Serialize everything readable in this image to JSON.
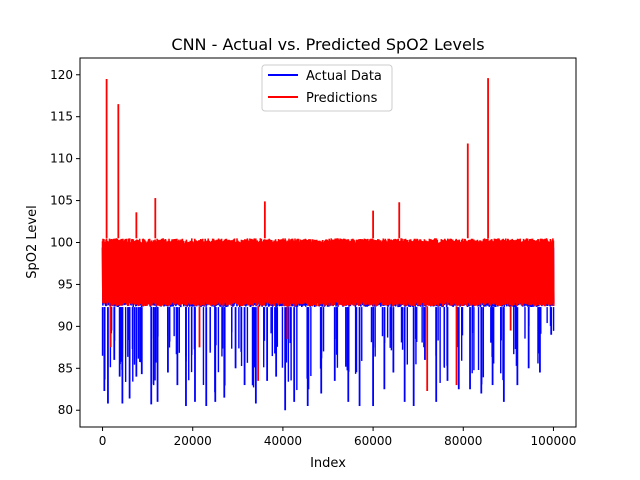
{
  "chart_data": {
    "type": "line",
    "title": "CNN - Actual vs. Predicted SpO2 Levels",
    "xlabel": "Index",
    "ylabel": "SpO2 Level",
    "xlim": [
      -5000,
      105000
    ],
    "ylim": [
      78,
      122
    ],
    "x_ticks": [
      0,
      20000,
      40000,
      60000,
      80000,
      100000
    ],
    "y_ticks": [
      80,
      85,
      90,
      95,
      100,
      105,
      110,
      115,
      120
    ],
    "grid": false,
    "legend": {
      "position": "top-center"
    },
    "series": [
      {
        "name": "Actual Data",
        "color": "#0000ff",
        "band": [
          92.3,
          99.8
        ],
        "dips": [
          {
            "x": 400,
            "y": 82.3
          },
          {
            "x": 1200,
            "y": 80.8
          },
          {
            "x": 2600,
            "y": 86.0
          },
          {
            "x": 3800,
            "y": 84.0
          },
          {
            "x": 4400,
            "y": 80.8
          },
          {
            "x": 6000,
            "y": 81.4
          },
          {
            "x": 7500,
            "y": 84.0
          },
          {
            "x": 8700,
            "y": 84.3
          },
          {
            "x": 10800,
            "y": 80.7
          },
          {
            "x": 12200,
            "y": 81.0
          },
          {
            "x": 14500,
            "y": 84.5
          },
          {
            "x": 16600,
            "y": 83.0
          },
          {
            "x": 18500,
            "y": 80.5
          },
          {
            "x": 20500,
            "y": 81.0
          },
          {
            "x": 23000,
            "y": 80.5
          },
          {
            "x": 25000,
            "y": 81.0
          },
          {
            "x": 27000,
            "y": 81.5
          },
          {
            "x": 29500,
            "y": 85.0
          },
          {
            "x": 31500,
            "y": 83.0
          },
          {
            "x": 34000,
            "y": 80.8
          },
          {
            "x": 36500,
            "y": 83.5
          },
          {
            "x": 38500,
            "y": 84.0
          },
          {
            "x": 40500,
            "y": 80.0
          },
          {
            "x": 42500,
            "y": 81.0
          },
          {
            "x": 45500,
            "y": 80.5
          },
          {
            "x": 48500,
            "y": 82.0
          },
          {
            "x": 51500,
            "y": 83.5
          },
          {
            "x": 54500,
            "y": 81.0
          },
          {
            "x": 57000,
            "y": 80.5
          },
          {
            "x": 60000,
            "y": 80.5
          },
          {
            "x": 62500,
            "y": 82.5
          },
          {
            "x": 64500,
            "y": 84.5
          },
          {
            "x": 67000,
            "y": 81.0
          },
          {
            "x": 69000,
            "y": 80.5
          },
          {
            "x": 71500,
            "y": 86.0
          },
          {
            "x": 74000,
            "y": 81.0
          },
          {
            "x": 76500,
            "y": 83.5
          },
          {
            "x": 79000,
            "y": 82.5
          },
          {
            "x": 81500,
            "y": 82.5
          },
          {
            "x": 84000,
            "y": 82.0
          },
          {
            "x": 86500,
            "y": 83.0
          },
          {
            "x": 89000,
            "y": 81.0
          },
          {
            "x": 92000,
            "y": 83.0
          },
          {
            "x": 94500,
            "y": 85.0
          },
          {
            "x": 97000,
            "y": 84.5
          },
          {
            "x": 99500,
            "y": 89.0
          }
        ]
      },
      {
        "name": "Predictions",
        "color": "#ff0000",
        "band": [
          92.4,
          100.5
        ],
        "spikes": [
          {
            "x": 900,
            "y": 119.5
          },
          {
            "x": 3500,
            "y": 116.5
          },
          {
            "x": 7500,
            "y": 103.6
          },
          {
            "x": 11700,
            "y": 105.3
          },
          {
            "x": 36000,
            "y": 104.9
          },
          {
            "x": 60000,
            "y": 103.8
          },
          {
            "x": 65800,
            "y": 104.8
          },
          {
            "x": 81000,
            "y": 111.8
          },
          {
            "x": 85500,
            "y": 119.6
          }
        ],
        "dips": [
          {
            "x": 1800,
            "y": 87.5
          },
          {
            "x": 21500,
            "y": 87.5
          },
          {
            "x": 34500,
            "y": 83.5
          },
          {
            "x": 41000,
            "y": 88.5
          },
          {
            "x": 72000,
            "y": 82.3
          },
          {
            "x": 78500,
            "y": 83.0
          },
          {
            "x": 90500,
            "y": 89.5
          }
        ]
      }
    ]
  }
}
